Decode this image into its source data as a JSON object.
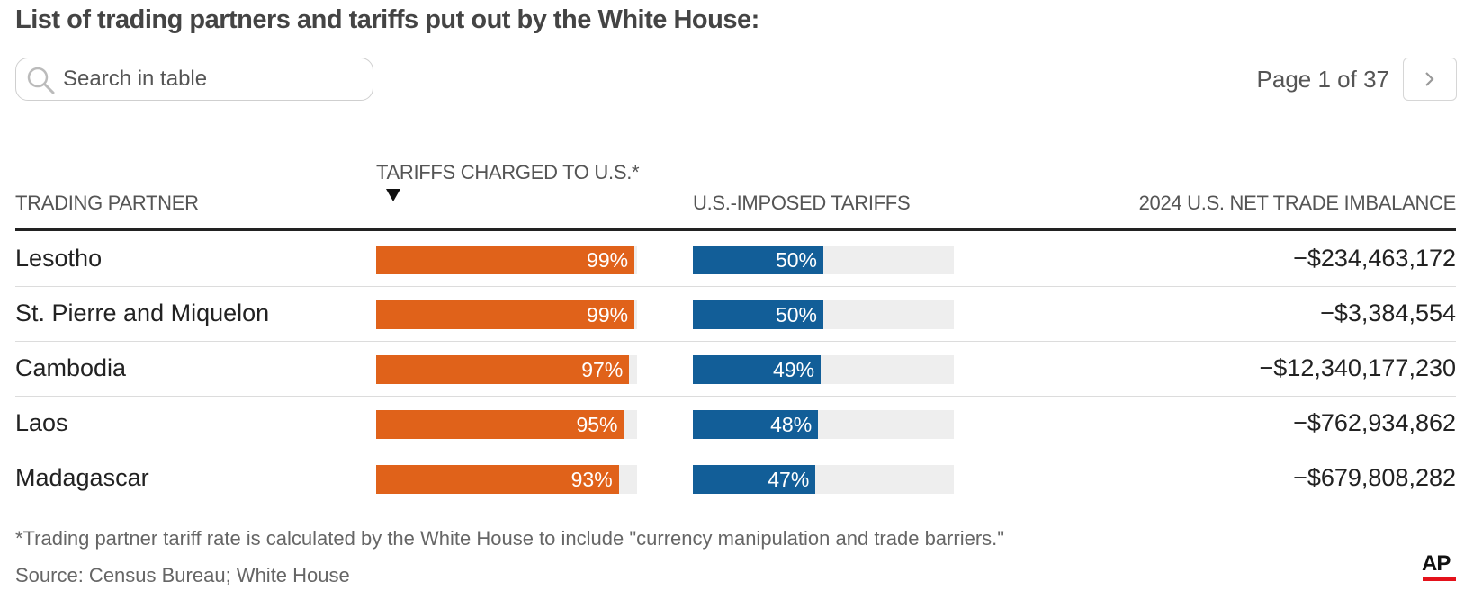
{
  "title": "List of trading partners and tariffs put out by the White House:",
  "search": {
    "placeholder": "Search in table",
    "icon": "search-icon"
  },
  "pager": {
    "label": "Page 1 of 37",
    "next_icon": "chevron-right-icon"
  },
  "columns": {
    "partner": "TRADING PARTNER",
    "charged": "TARIFFS CHARGED TO U.S.*",
    "imposed": "U.S.-IMPOSED TARIFFS",
    "imbalance": "2024 U.S. NET TRADE IMBALANCE",
    "sort_icon": "sort-descending-icon"
  },
  "colors": {
    "charged": "#e0621a",
    "imposed": "#125e98",
    "track": "#eeeeee"
  },
  "chart_data": {
    "type": "table",
    "value_range": [
      0,
      100
    ],
    "rows": [
      {
        "partner": "Lesotho",
        "charged": 99,
        "charged_label": "99%",
        "imposed": 50,
        "imposed_label": "50%",
        "imbalance": "−$234,463,172"
      },
      {
        "partner": "St. Pierre and Miquelon",
        "charged": 99,
        "charged_label": "99%",
        "imposed": 50,
        "imposed_label": "50%",
        "imbalance": "−$3,384,554"
      },
      {
        "partner": "Cambodia",
        "charged": 97,
        "charged_label": "97%",
        "imposed": 49,
        "imposed_label": "49%",
        "imbalance": "−$12,340,177,230"
      },
      {
        "partner": "Laos",
        "charged": 95,
        "charged_label": "95%",
        "imposed": 48,
        "imposed_label": "48%",
        "imbalance": "−$762,934,862"
      },
      {
        "partner": "Madagascar",
        "charged": 93,
        "charged_label": "93%",
        "imposed": 47,
        "imposed_label": "47%",
        "imbalance": "−$679,808,282"
      }
    ]
  },
  "footnote": "*Trading partner tariff rate is calculated by the White House to include \"currency manipulation and trade barriers.\"",
  "source": "Source: Census Bureau; White House",
  "logo": "AP"
}
